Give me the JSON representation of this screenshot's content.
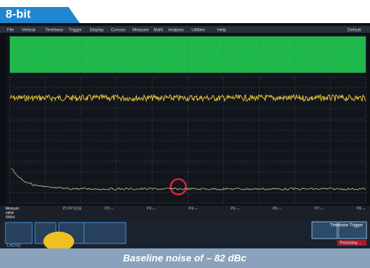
{
  "badge": "8-bit",
  "menu": [
    "File",
    "Vertical",
    "Timebase",
    "Trigger",
    "Display",
    "Cursors",
    "Measure",
    "Math",
    "Analysis",
    "Utilities",
    "Help"
  ],
  "menu_right": "Default",
  "measure": {
    "labels": [
      "Measure",
      "value",
      "status"
    ],
    "params": [
      "P1:FFT(C6)",
      "P2:---",
      "P3:---",
      "P4:---",
      "P5:---",
      "P6:---",
      "P7:---",
      "P8:---"
    ]
  },
  "timebase": {
    "title": "Timebase",
    "trigger": "Trigger"
  },
  "footer": {
    "brand": "LeCroy",
    "status": "Processing ..."
  },
  "caption": "Baseline noise of – 82 dBc"
}
